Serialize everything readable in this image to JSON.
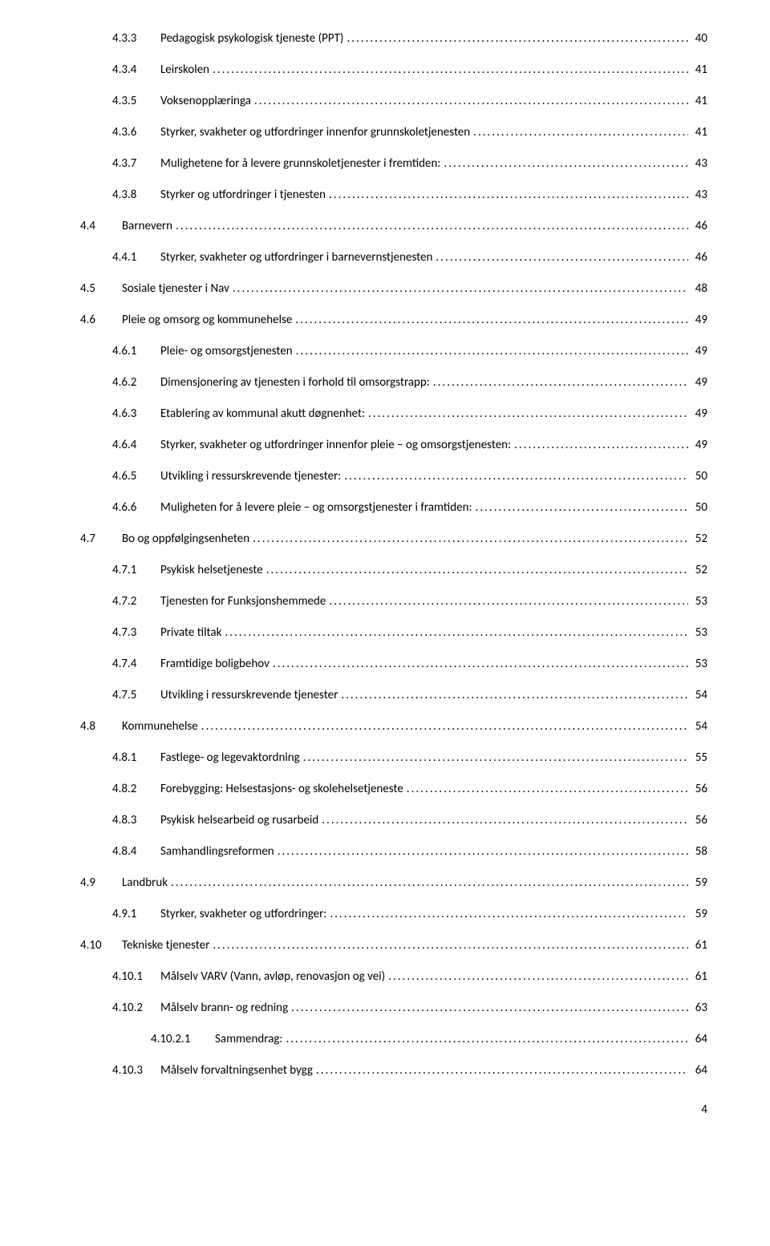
{
  "text_color": "#000000",
  "background_color": "#ffffff",
  "font_family": "Calibri",
  "body_font_size_pt": 11,
  "page_number": "4",
  "toc_entries": [
    {
      "level": 3,
      "num": "4.3.3",
      "title": "Pedagogisk psykologisk tjeneste (PPT)",
      "page": "40"
    },
    {
      "level": 3,
      "num": "4.3.4",
      "title": "Leirskolen",
      "page": "41"
    },
    {
      "level": 3,
      "num": "4.3.5",
      "title": "Voksenopplæringa",
      "page": "41"
    },
    {
      "level": 3,
      "num": "4.3.6",
      "title": "Styrker, svakheter og utfordringer innenfor grunnskoletjenesten",
      "page": "41"
    },
    {
      "level": 3,
      "num": "4.3.7",
      "title": "Mulighetene for å levere grunnskoletjenester i fremtiden:",
      "page": "43"
    },
    {
      "level": 3,
      "num": "4.3.8",
      "title": "Styrker og utfordringer i tjenesten",
      "page": "43"
    },
    {
      "level": 2,
      "num": "4.4",
      "title": "Barnevern",
      "page": "46"
    },
    {
      "level": 3,
      "num": "4.4.1",
      "title": "Styrker, svakheter og utfordringer i barnevernstjenesten",
      "page": "46"
    },
    {
      "level": 2,
      "num": "4.5",
      "title": "Sosiale tjenester i Nav",
      "page": "48"
    },
    {
      "level": 2,
      "num": "4.6",
      "title": "Pleie og omsorg og kommunehelse",
      "page": "49"
    },
    {
      "level": 3,
      "num": "4.6.1",
      "title": "Pleie- og omsorgstjenesten",
      "page": "49"
    },
    {
      "level": 3,
      "num": "4.6.2",
      "title": "Dimensjonering av tjenesten i forhold til omsorgstrapp:",
      "page": "49"
    },
    {
      "level": 3,
      "num": "4.6.3",
      "title": "Etablering av kommunal akutt døgnenhet:",
      "page": "49"
    },
    {
      "level": 3,
      "num": "4.6.4",
      "title": "Styrker, svakheter og utfordringer innenfor pleie – og omsorgstjenesten:",
      "page": "49"
    },
    {
      "level": 3,
      "num": "4.6.5",
      "title": "Utvikling i ressurskrevende tjenester:",
      "page": "50"
    },
    {
      "level": 3,
      "num": "4.6.6",
      "title": "Muligheten for å levere pleie – og omsorgstjenester i framtiden:",
      "page": "50"
    },
    {
      "level": 2,
      "num": "4.7",
      "title": "Bo og oppfølgingsenheten",
      "page": "52"
    },
    {
      "level": 3,
      "num": "4.7.1",
      "title": "Psykisk helsetjeneste",
      "page": "52"
    },
    {
      "level": 3,
      "num": "4.7.2",
      "title": "Tjenesten for Funksjonshemmede",
      "page": "53"
    },
    {
      "level": 3,
      "num": "4.7.3",
      "title": "Private tiltak",
      "page": "53"
    },
    {
      "level": 3,
      "num": "4.7.4",
      "title": "Framtidige boligbehov",
      "page": "53"
    },
    {
      "level": 3,
      "num": "4.7.5",
      "title": "Utvikling i ressurskrevende tjenester",
      "page": "54"
    },
    {
      "level": 2,
      "num": "4.8",
      "title": "Kommunehelse",
      "page": "54"
    },
    {
      "level": 3,
      "num": "4.8.1",
      "title": "Fastlege- og legevaktordning",
      "page": "55"
    },
    {
      "level": 3,
      "num": "4.8.2",
      "title": "Forebygging: Helsestasjons- og skolehelsetjeneste",
      "page": "56"
    },
    {
      "level": 3,
      "num": "4.8.3",
      "title": "Psykisk helsearbeid og rusarbeid",
      "page": "56"
    },
    {
      "level": 3,
      "num": "4.8.4",
      "title": "Samhandlingsreformen",
      "page": "58"
    },
    {
      "level": 2,
      "num": "4.9",
      "title": "Landbruk",
      "page": "59"
    },
    {
      "level": 3,
      "num": "4.9.1",
      "title": "Styrker, svakheter og utfordringer:",
      "page": "59"
    },
    {
      "level": 2,
      "num": "4.10",
      "title": "Tekniske tjenester",
      "page": "61"
    },
    {
      "level": 3,
      "num": "4.10.1",
      "title": "Målselv VARV (Vann, avløp, renovasjon og vei)",
      "page": "61"
    },
    {
      "level": 3,
      "num": "4.10.2",
      "title": "Målselv brann- og redning",
      "page": "63"
    },
    {
      "level": 4,
      "num": "4.10.2.1",
      "title": "Sammendrag:",
      "page": "64"
    },
    {
      "level": 3,
      "num": "4.10.3",
      "title": "Målselv forvaltningsenhet bygg",
      "page": "64"
    }
  ]
}
